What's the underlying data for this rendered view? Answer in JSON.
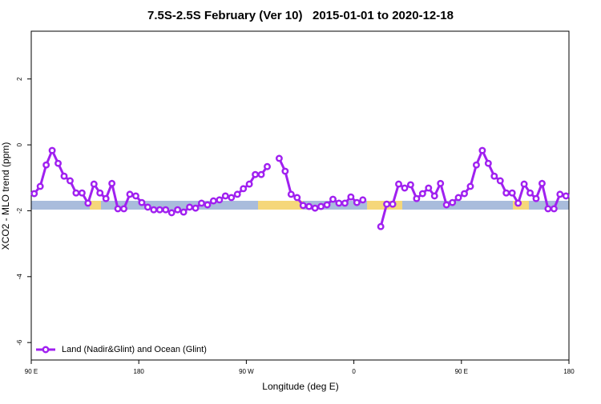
{
  "chart_data": {
    "type": "line",
    "title": "7.5S-2.5S February (Ver 10)   2015-01-01 to 2020-12-18",
    "x_label": "Longitude (deg E)",
    "y_label": "XCO2 - MLO trend (ppm)",
    "x": [
      92.5,
      97.5,
      102.5,
      107.5,
      112.5,
      117.5,
      122.5,
      127.5,
      132.5,
      137.5,
      142.5,
      147.5,
      152.5,
      157.5,
      162.5,
      167.5,
      172.5,
      177.5,
      182.5,
      187.5,
      192.5,
      197.5,
      202.5,
      207.5,
      212.5,
      217.5,
      222.5,
      227.5,
      232.5,
      237.5,
      242.5,
      247.5,
      252.5,
      257.5,
      262.5,
      267.5,
      272.5,
      277.5,
      282.5,
      287.5,
      292.5,
      297.5,
      302.5,
      307.5,
      312.5,
      317.5,
      322.5,
      327.5,
      332.5,
      337.5,
      342.5,
      347.5,
      352.5,
      357.5,
      362.5,
      367.5,
      372.5,
      377.5,
      382.5,
      387.5,
      392.5,
      397.5,
      402.5,
      407.5,
      412.5,
      417.5,
      422.5,
      427.5,
      432.5,
      437.5,
      442.5,
      447.5,
      452.5,
      457.5,
      462.5,
      467.5,
      472.5,
      477.5,
      482.5,
      487.5,
      492.5,
      497.5,
      502.5,
      507.5,
      512.5,
      517.5,
      522.5,
      527.5,
      532.5,
      537.5
    ],
    "series": [
      {
        "name": "Land (Nadir&Glint) and Ocean (Glint)",
        "color": "#a020f0",
        "values": [
          -1.48,
          -1.26,
          -0.61,
          -0.17,
          -0.56,
          -0.95,
          -1.09,
          -1.46,
          -1.46,
          -1.77,
          -1.19,
          -1.46,
          -1.63,
          -1.17,
          -1.94,
          -1.94,
          -1.5,
          -1.55,
          -1.75,
          -1.89,
          -1.97,
          -1.97,
          -1.97,
          -2.06,
          -1.97,
          -2.04,
          -1.89,
          -1.92,
          -1.77,
          -1.82,
          -1.7,
          -1.67,
          -1.55,
          -1.6,
          -1.5,
          -1.33,
          -1.19,
          -0.9,
          -0.9,
          -0.66,
          null,
          -0.41,
          -0.8,
          -1.5,
          -1.6,
          -1.84,
          -1.87,
          -1.92,
          -1.87,
          -1.82,
          -1.65,
          -1.77,
          -1.77,
          -1.58,
          -1.75,
          -1.67,
          null,
          null,
          -2.48,
          -1.8,
          -1.8,
          -1.19,
          -1.31,
          -1.21,
          -1.63,
          -1.48,
          -1.31,
          -1.55,
          -1.17,
          -1.82,
          -1.75,
          -1.6,
          -1.48,
          -1.26,
          -0.61,
          -0.17,
          -0.56,
          -0.95,
          -1.09,
          -1.46,
          -1.46,
          -1.77,
          -1.19,
          -1.46,
          -1.63,
          -1.17,
          -1.94,
          -1.94,
          -1.5,
          -1.55
        ]
      }
    ],
    "xlim": [
      90,
      540
    ],
    "xticks": [
      {
        "value": 90,
        "label": "90 E"
      },
      180,
      {
        "value": 270,
        "label": "90 W"
      },
      {
        "value": 360,
        "label": "0"
      },
      {
        "value": 450,
        "label": "90 E"
      },
      {
        "value": 540,
        "label": "180"
      }
    ],
    "ylim": [
      -6.53,
      3.45
    ],
    "yticks": [
      -6,
      -4,
      -2,
      0,
      2
    ],
    "grid": false,
    "legend": "bottomleft"
  }
}
